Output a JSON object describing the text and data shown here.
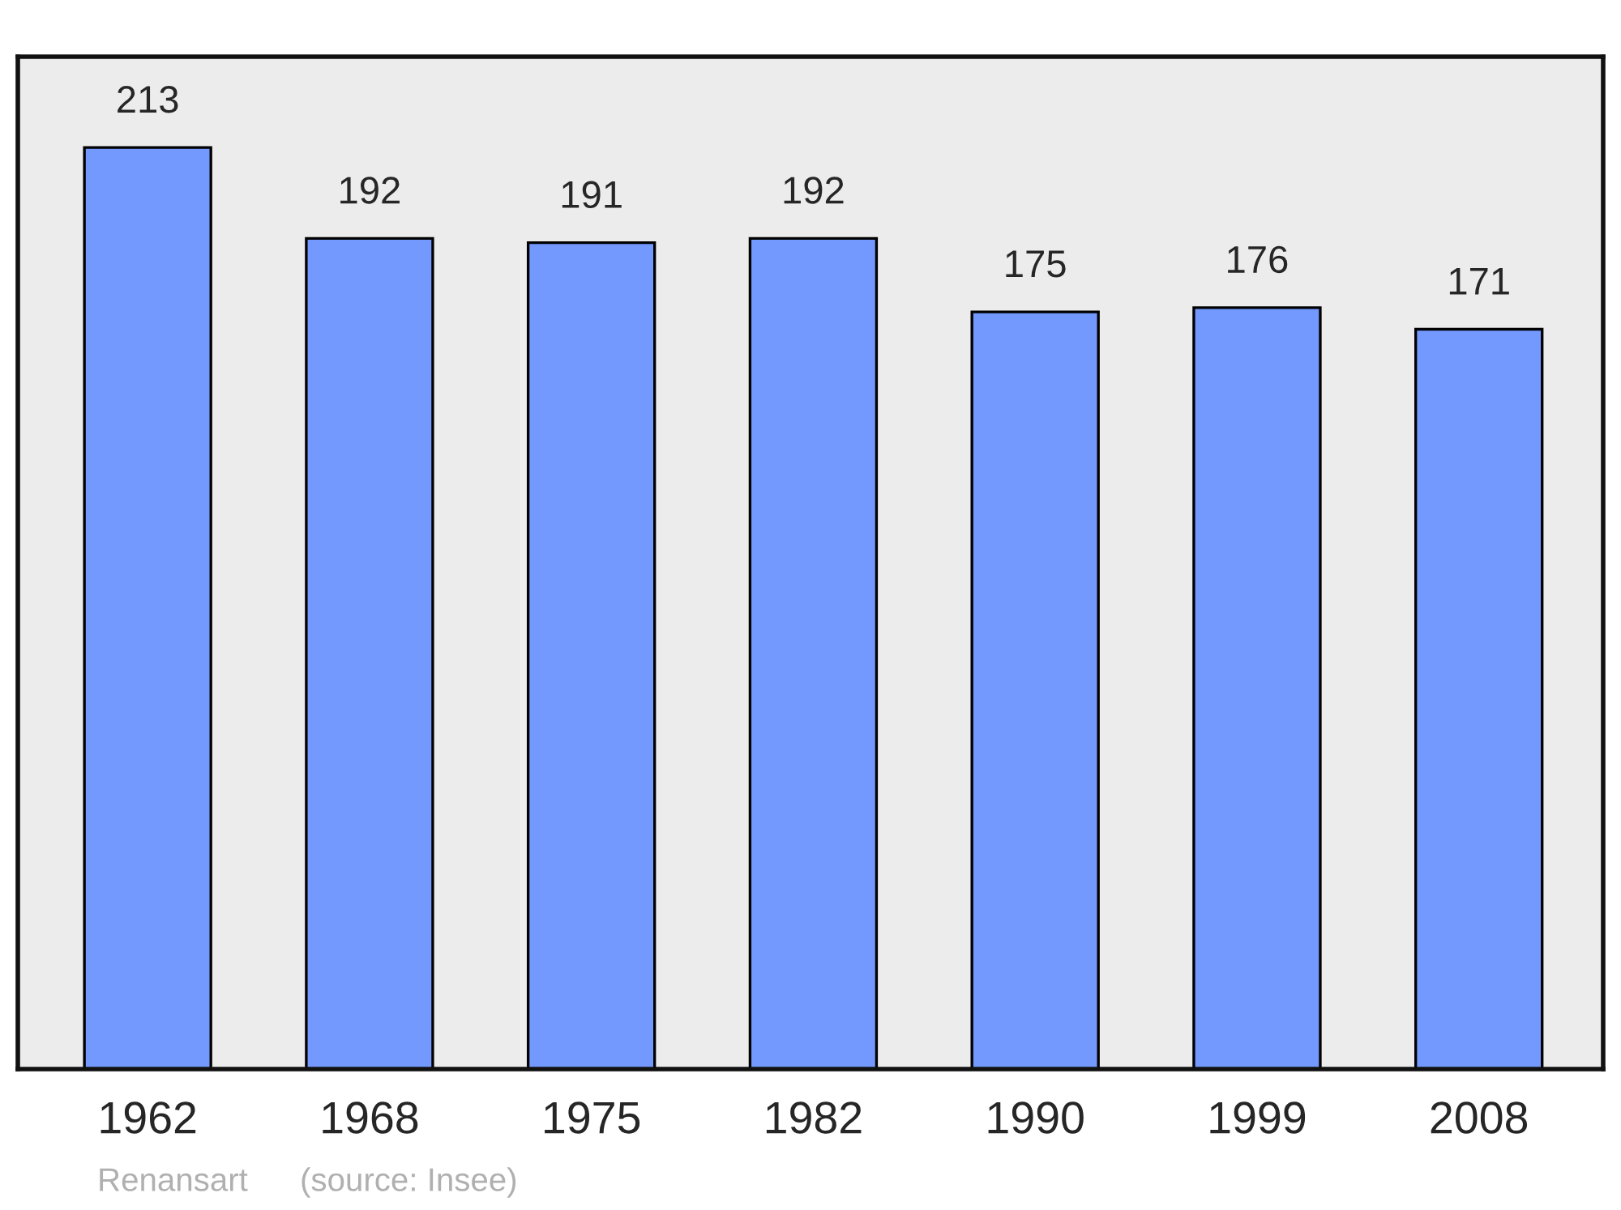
{
  "chart_data": {
    "type": "bar",
    "categories": [
      "1962",
      "1968",
      "1975",
      "1982",
      "1990",
      "1999",
      "2008"
    ],
    "values": [
      213,
      192,
      191,
      192,
      175,
      176,
      171
    ],
    "color": "#7399ff",
    "ylim": [
      0,
      234
    ],
    "data_labels": true,
    "grid": false,
    "legend": false,
    "tick_labels": "x",
    "annotations": [
      "Renansart",
      "(source: Insee)"
    ]
  }
}
